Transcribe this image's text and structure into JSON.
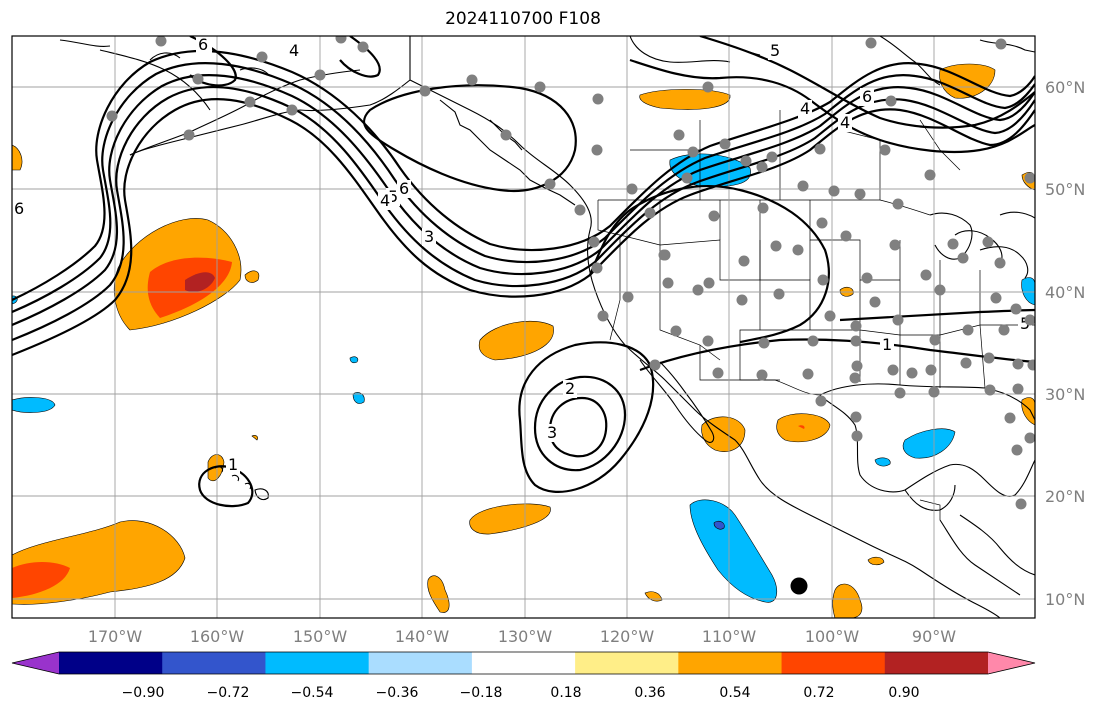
{
  "title": "2024110700 F108",
  "map": {
    "lon_labels": [
      "170°W",
      "160°W",
      "150°W",
      "140°W",
      "130°W",
      "120°W",
      "110°W",
      "100°W",
      "90°W"
    ],
    "lat_labels": [
      "60°N",
      "50°N",
      "40°N",
      "30°N",
      "20°N",
      "10°N"
    ],
    "contour_labels": [
      "6",
      "4",
      "5",
      "6",
      "4",
      "6",
      "5",
      "6",
      "3",
      "2",
      "3",
      "1",
      "1",
      "5",
      "4",
      "4"
    ],
    "grid": true
  },
  "colorbar": {
    "tick_labels": [
      "−0.90",
      "−0.72",
      "−0.54",
      "−0.36",
      "−0.18",
      "0.18",
      "0.36",
      "0.54",
      "0.72",
      "0.90"
    ],
    "colors": [
      "#9933cc",
      "#000088",
      "#3355cc",
      "#00bbff",
      "#aaddff",
      "#ffffff",
      "#ffee88",
      "#ffa500",
      "#ff4500",
      "#b22222",
      "#ff88aa"
    ],
    "extend": "both"
  },
  "markers": {
    "station_color": "#808080",
    "highlight_color": "#000000"
  }
}
